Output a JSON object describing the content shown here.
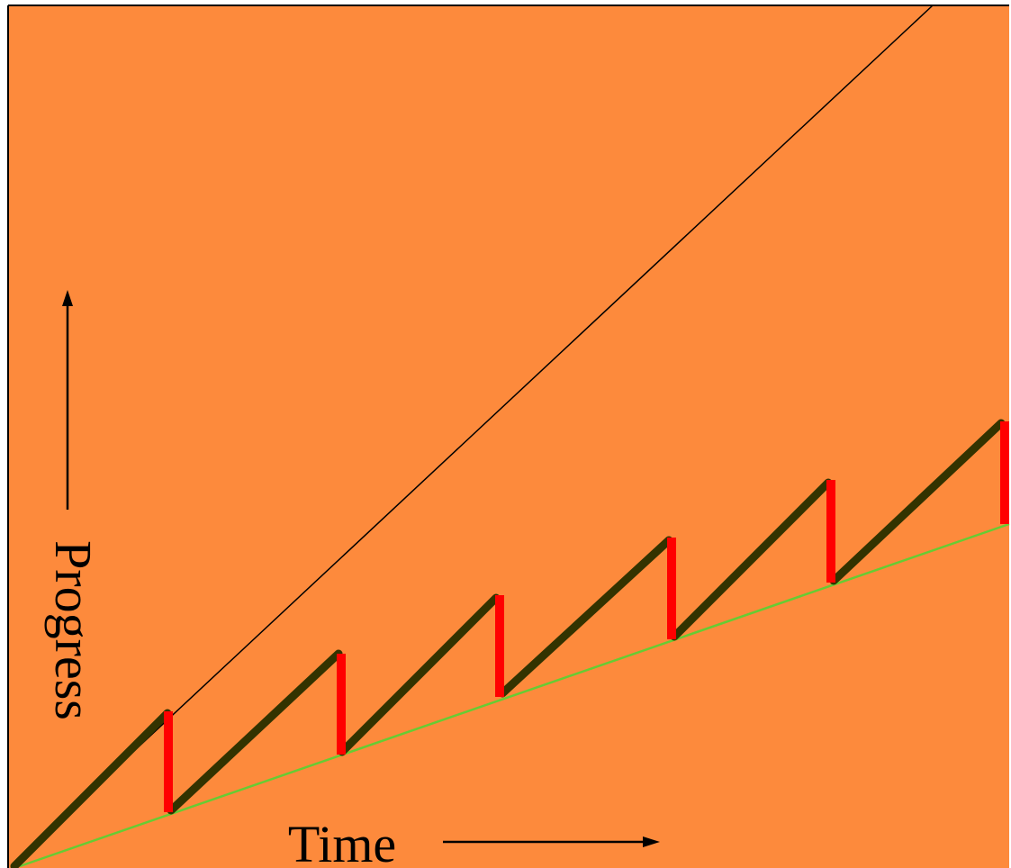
{
  "labels": {
    "x_axis": "Time",
    "y_axis": "Progress"
  },
  "colors": {
    "background": "#fd8a3c",
    "border": "#000000",
    "ideal_line": "#000000",
    "sawtooth": "#333300",
    "rollback": "#ff0000",
    "trend": "#66cc33",
    "text": "#000000"
  },
  "icons": {
    "x_arrow": "arrow-right-icon",
    "y_arrow": "arrow-up-icon"
  }
}
